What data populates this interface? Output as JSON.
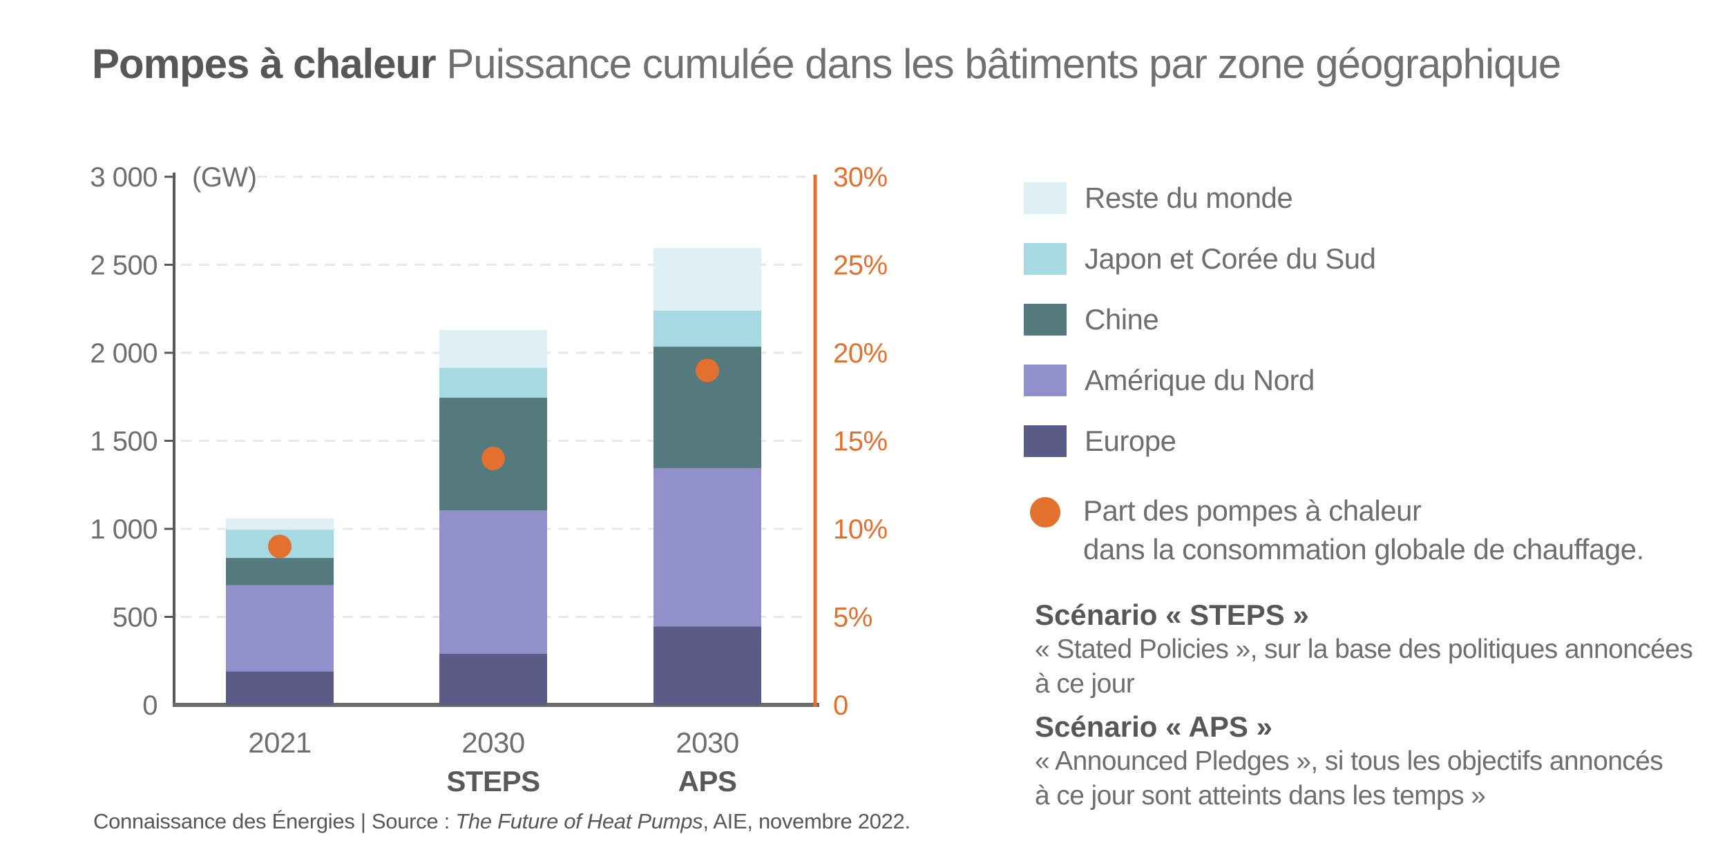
{
  "title": {
    "bold": "Pompes à chaleur",
    "rest": " Puissance cumulée dans les bâtiments par zone géographique"
  },
  "chart_data": {
    "type": "bar",
    "stacked": true,
    "unit_label": "(GW)",
    "categories": [
      "2021",
      "2030",
      "2030"
    ],
    "category_sublabels": [
      "",
      "STEPS",
      "APS"
    ],
    "series": [
      {
        "name": "Europe",
        "color": "#5c5a86",
        "values": [
          190,
          290,
          445
        ]
      },
      {
        "name": "Amérique du Nord",
        "color": "#9190ca",
        "values": [
          490,
          815,
          900
        ]
      },
      {
        "name": "Chine",
        "color": "#547a7e",
        "values": [
          155,
          640,
          690
        ]
      },
      {
        "name": "Japon et Corée du Sud",
        "color": "#a7d9e2",
        "values": [
          160,
          170,
          205
        ]
      },
      {
        "name": "Reste du monde",
        "color": "#def0f6",
        "values": [
          65,
          215,
          355
        ]
      }
    ],
    "totals_gw": [
      1060,
      2130,
      2595
    ],
    "dot_series": {
      "name": "Part des pompes à chaleur dans la consommation globale de chauffage.",
      "color": "#e2702e",
      "values_pct": [
        9,
        14,
        19
      ]
    },
    "left_axis": {
      "min": 0,
      "max": 3000,
      "tick_step": 500,
      "tick_labels": [
        "0",
        "500",
        "1 000",
        "1 500",
        "2 000",
        "2 500",
        "3 000"
      ]
    },
    "right_axis": {
      "min": 0,
      "max": 30,
      "tick_step": 5,
      "color": "#e2702e",
      "tick_labels": [
        "0",
        "5%",
        "10%",
        "15%",
        "20%",
        "25%",
        "30%"
      ]
    },
    "grid": "dashed horizontal",
    "legend_position": "right"
  },
  "legend": {
    "items": [
      {
        "label": "Reste du monde",
        "color": "#def0f6"
      },
      {
        "label": "Japon et Corée du Sud",
        "color": "#a7d9e2"
      },
      {
        "label": "Chine",
        "color": "#547a7e"
      },
      {
        "label": "Amérique du Nord",
        "color": "#9190ca"
      },
      {
        "label": "Europe",
        "color": "#5c5a86"
      }
    ],
    "dot_item": {
      "line1": "Part des pompes à chaleur",
      "line2": "dans la consommation globale de chauffage."
    }
  },
  "scenarios": [
    {
      "heading": "Scénario « STEPS »",
      "line1": "« Stated Policies », sur la base des politiques annoncées",
      "line2": "à ce jour"
    },
    {
      "heading": "Scénario « APS »",
      "line1": "« Announced Pledges »,  si tous les objectifs annoncés",
      "line2": "à ce jour sont atteints dans les temps »"
    }
  ],
  "footer": {
    "prefix": "Connaissance des Énergies | Source : ",
    "source_italic": "The Future of Heat Pumps",
    "suffix": ", AIE, novembre 2022."
  }
}
